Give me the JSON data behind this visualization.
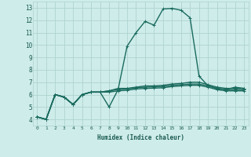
{
  "xlabel": "Humidex (Indice chaleur)",
  "bg_color": "#ceecea",
  "grid_color": "#aed4d0",
  "line_color": "#1a6b5e",
  "x_values": [
    0,
    1,
    2,
    3,
    4,
    5,
    6,
    7,
    8,
    9,
    10,
    11,
    12,
    13,
    14,
    15,
    16,
    17,
    18,
    19,
    20,
    21,
    22,
    23
  ],
  "series": [
    [
      4.2,
      4.0,
      6.0,
      5.8,
      5.2,
      6.0,
      6.2,
      6.2,
      5.0,
      6.4,
      9.9,
      11.0,
      11.9,
      11.6,
      12.9,
      12.95,
      12.8,
      12.2,
      7.5,
      6.7,
      6.5,
      6.4,
      6.6,
      6.5
    ],
    [
      4.2,
      4.0,
      6.0,
      5.8,
      5.2,
      6.0,
      6.2,
      6.2,
      6.3,
      6.5,
      6.5,
      6.6,
      6.7,
      6.7,
      6.75,
      6.85,
      6.9,
      7.0,
      7.0,
      6.8,
      6.6,
      6.5,
      6.5,
      6.5
    ],
    [
      4.2,
      4.0,
      6.0,
      5.8,
      5.2,
      6.0,
      6.2,
      6.2,
      6.3,
      6.4,
      6.45,
      6.55,
      6.6,
      6.62,
      6.65,
      6.75,
      6.8,
      6.85,
      6.85,
      6.7,
      6.5,
      6.4,
      6.4,
      6.4
    ],
    [
      4.2,
      4.0,
      6.0,
      5.8,
      5.2,
      6.0,
      6.2,
      6.2,
      6.2,
      6.3,
      6.35,
      6.45,
      6.5,
      6.52,
      6.55,
      6.65,
      6.7,
      6.75,
      6.75,
      6.6,
      6.4,
      6.3,
      6.3,
      6.3
    ]
  ],
  "xlim": [
    -0.5,
    23.5
  ],
  "ylim": [
    3.5,
    13.5
  ],
  "yticks": [
    4,
    5,
    6,
    7,
    8,
    9,
    10,
    11,
    12,
    13
  ],
  "xticks": [
    0,
    1,
    2,
    3,
    4,
    5,
    6,
    7,
    8,
    9,
    10,
    11,
    12,
    13,
    14,
    15,
    16,
    17,
    18,
    19,
    20,
    21,
    22,
    23
  ]
}
